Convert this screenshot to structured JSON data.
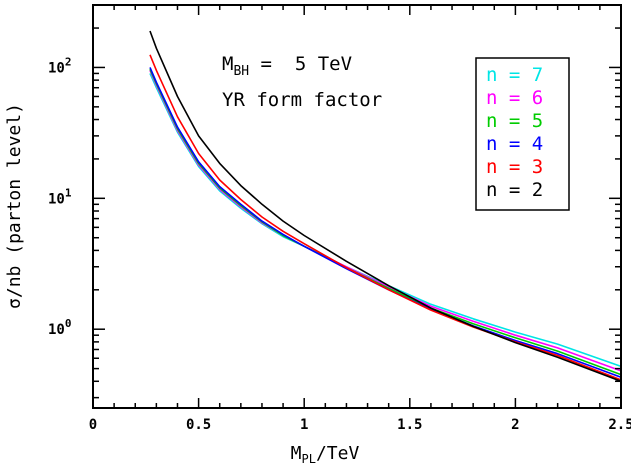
{
  "chart_data": {
    "type": "line",
    "title": "",
    "annotations": [
      "M_BH = 5 TeV",
      "YR form factor"
    ],
    "annotation_parts": {
      "mbh_symbol": "M",
      "mbh_subscript": "BH",
      "mbh_value": " =  5 TeV",
      "form_factor": "YR form factor"
    },
    "xlabel": "M_PL/TeV",
    "xlabel_parts": {
      "symbol": "M",
      "subscript": "PL",
      "rest": "/TeV"
    },
    "ylabel": "σ/nb (parton level)",
    "xlim": [
      0,
      2.5
    ],
    "ylim": [
      0.25,
      300
    ],
    "yscale": "log",
    "grid": false,
    "legend_position": "top-right",
    "x_ticks": [
      "0",
      "0.5",
      "1",
      "1.5",
      "2",
      "2.5"
    ],
    "y_ticks": [
      {
        "base": "10",
        "exp": "0",
        "value": 1
      },
      {
        "base": "10",
        "exp": "1",
        "value": 10
      },
      {
        "base": "10",
        "exp": "2",
        "value": 100
      }
    ],
    "x": [
      0.27,
      0.3,
      0.4,
      0.5,
      0.6,
      0.7,
      0.8,
      0.9,
      1.0,
      1.2,
      1.4,
      1.6,
      1.8,
      2.0,
      2.2,
      2.5
    ],
    "series": [
      {
        "name": "n = 7",
        "color": "#00e5e5",
        "values": [
          90,
          70,
          32,
          17.5,
          11.4,
          8.4,
          6.4,
          5.1,
          4.3,
          3.0,
          2.15,
          1.55,
          1.2,
          0.95,
          0.77,
          0.52
        ]
      },
      {
        "name": "n = 6",
        "color": "#ff00ff",
        "values": [
          95,
          73,
          33,
          18,
          11.7,
          8.6,
          6.5,
          5.2,
          4.3,
          3.0,
          2.1,
          1.5,
          1.15,
          0.9,
          0.72,
          0.48
        ]
      },
      {
        "name": "n = 5",
        "color": "#00cc00",
        "values": [
          97,
          75,
          34,
          18.5,
          12,
          8.8,
          6.6,
          5.2,
          4.3,
          2.95,
          2.05,
          1.45,
          1.1,
          0.86,
          0.68,
          0.45
        ]
      },
      {
        "name": "n = 4",
        "color": "#0000ff",
        "values": [
          100,
          77,
          35,
          19,
          12.3,
          9.0,
          6.7,
          5.3,
          4.3,
          2.9,
          2.0,
          1.42,
          1.06,
          0.82,
          0.65,
          0.43
        ]
      },
      {
        "name": "n = 3",
        "color": "#ff0000",
        "values": [
          125,
          95,
          42,
          22,
          13.8,
          9.8,
          7.2,
          5.6,
          4.5,
          2.95,
          2.0,
          1.4,
          1.04,
          0.8,
          0.63,
          0.41
        ]
      },
      {
        "name": "n = 2",
        "color": "#000000",
        "values": [
          190,
          140,
          60,
          30,
          18.5,
          12.5,
          9.0,
          6.7,
          5.2,
          3.3,
          2.15,
          1.45,
          1.05,
          0.79,
          0.61,
          0.4
        ]
      }
    ]
  }
}
